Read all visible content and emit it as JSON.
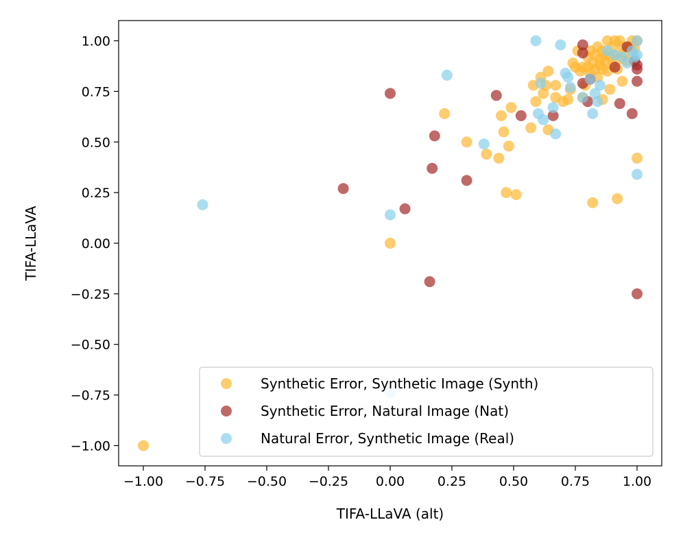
{
  "chart_data": {
    "type": "scatter",
    "title": "",
    "xlabel": "TIFA-LLaVA (alt)",
    "ylabel": "TIFA-LLaVA",
    "xlim": [
      -1.1,
      1.1
    ],
    "ylim": [
      -1.1,
      1.1
    ],
    "grid": false,
    "legend_position": "lower-right",
    "xticks": [
      -1.0,
      -0.75,
      -0.5,
      -0.25,
      0.0,
      0.25,
      0.5,
      0.75,
      1.0
    ],
    "xtick_labels": [
      "−1.00",
      "−0.75",
      "−0.50",
      "−0.25",
      "0.00",
      "0.25",
      "0.50",
      "0.75",
      "1.00"
    ],
    "yticks": [
      -1.0,
      -0.75,
      -0.5,
      -0.25,
      0.0,
      0.25,
      0.5,
      0.75,
      1.0
    ],
    "ytick_labels": [
      "−1.00",
      "−0.75",
      "−0.50",
      "−0.25",
      "0.00",
      "0.25",
      "0.50",
      "0.75",
      "1.00"
    ],
    "series": [
      {
        "name": "Synthetic Error, Synthetic Image (Synth)",
        "color": "#FFB732",
        "alpha": 0.7,
        "points": [
          [
            -1.0,
            -1.0
          ],
          [
            0.0,
            0.0
          ],
          [
            0.22,
            0.64
          ],
          [
            0.31,
            0.5
          ],
          [
            0.39,
            0.44
          ],
          [
            0.44,
            0.42
          ],
          [
            0.45,
            0.63
          ],
          [
            0.46,
            0.55
          ],
          [
            0.47,
            0.25
          ],
          [
            0.48,
            0.48
          ],
          [
            0.49,
            0.67
          ],
          [
            0.51,
            0.24
          ],
          [
            0.57,
            0.57
          ],
          [
            0.58,
            0.78
          ],
          [
            0.59,
            0.7
          ],
          [
            0.61,
            0.82
          ],
          [
            0.62,
            0.74
          ],
          [
            0.63,
            0.78
          ],
          [
            0.64,
            0.85
          ],
          [
            0.64,
            0.56
          ],
          [
            0.67,
            0.72
          ],
          [
            0.67,
            0.78
          ],
          [
            0.7,
            0.7
          ],
          [
            0.72,
            0.71
          ],
          [
            0.73,
            0.76
          ],
          [
            0.74,
            0.89
          ],
          [
            0.75,
            0.87
          ],
          [
            0.76,
            0.95
          ],
          [
            0.77,
            0.85
          ],
          [
            0.78,
            0.72
          ],
          [
            0.78,
            0.87
          ],
          [
            0.79,
            0.78
          ],
          [
            0.8,
            0.92
          ],
          [
            0.8,
            0.87
          ],
          [
            0.81,
            0.95
          ],
          [
            0.81,
            0.84
          ],
          [
            0.82,
            0.89
          ],
          [
            0.82,
            0.2
          ],
          [
            0.83,
            0.93
          ],
          [
            0.83,
            0.86
          ],
          [
            0.84,
            0.97
          ],
          [
            0.84,
            0.82
          ],
          [
            0.85,
            0.91
          ],
          [
            0.85,
            0.88
          ],
          [
            0.86,
            0.95
          ],
          [
            0.86,
            0.86
          ],
          [
            0.87,
            0.9
          ],
          [
            0.87,
            0.93
          ],
          [
            0.88,
            0.85
          ],
          [
            0.88,
            1.0
          ],
          [
            0.89,
            0.92
          ],
          [
            0.89,
            0.76
          ],
          [
            0.9,
            0.97
          ],
          [
            0.9,
            0.88
          ],
          [
            0.91,
            1.0
          ],
          [
            0.91,
            0.93
          ],
          [
            0.92,
            0.86
          ],
          [
            0.92,
            0.22
          ],
          [
            0.93,
            1.0
          ],
          [
            0.93,
            0.91
          ],
          [
            0.94,
            0.97
          ],
          [
            0.94,
            0.8
          ],
          [
            0.95,
            0.94
          ],
          [
            0.96,
            0.9
          ],
          [
            0.97,
            0.97
          ],
          [
            0.98,
            1.0
          ],
          [
            0.99,
            0.96
          ],
          [
            1.0,
            1.0
          ],
          [
            1.0,
            0.42
          ],
          [
            0.86,
            0.71
          ]
        ]
      },
      {
        "name": "Synthetic Error, Natural Image (Nat)",
        "color": "#A52A2A",
        "alpha": 0.7,
        "points": [
          [
            -0.19,
            0.27
          ],
          [
            0.0,
            0.74
          ],
          [
            0.06,
            0.17
          ],
          [
            0.16,
            -0.19
          ],
          [
            0.17,
            0.37
          ],
          [
            0.18,
            0.53
          ],
          [
            0.31,
            0.31
          ],
          [
            0.43,
            0.73
          ],
          [
            0.53,
            0.63
          ],
          [
            0.66,
            0.63
          ],
          [
            0.78,
            0.79
          ],
          [
            0.78,
            0.94
          ],
          [
            0.78,
            0.98
          ],
          [
            0.8,
            0.7
          ],
          [
            0.81,
            0.81
          ],
          [
            0.91,
            0.87
          ],
          [
            0.93,
            0.69
          ],
          [
            0.96,
            0.97
          ],
          [
            0.98,
            0.64
          ],
          [
            0.99,
            0.9
          ],
          [
            1.0,
            0.86
          ],
          [
            1.0,
            0.8
          ],
          [
            1.0,
            0.88
          ],
          [
            1.0,
            -0.25
          ]
        ]
      },
      {
        "name": "Natural Error, Synthetic Image (Real)",
        "color": "#87CEEB",
        "alpha": 0.7,
        "points": [
          [
            -0.76,
            0.19
          ],
          [
            0.0,
            0.14
          ],
          [
            0.0,
            -0.74
          ],
          [
            0.23,
            0.83
          ],
          [
            0.38,
            0.49
          ],
          [
            0.59,
            1.0
          ],
          [
            0.6,
            0.64
          ],
          [
            0.61,
            0.79
          ],
          [
            0.62,
            0.61
          ],
          [
            0.66,
            0.67
          ],
          [
            0.67,
            0.54
          ],
          [
            0.69,
            0.98
          ],
          [
            0.71,
            0.84
          ],
          [
            0.72,
            0.82
          ],
          [
            0.73,
            0.77
          ],
          [
            0.78,
            0.72
          ],
          [
            0.81,
            0.81
          ],
          [
            0.82,
            0.64
          ],
          [
            0.83,
            0.74
          ],
          [
            0.84,
            0.7
          ],
          [
            0.85,
            0.78
          ],
          [
            0.88,
            0.95
          ],
          [
            0.91,
            0.93
          ],
          [
            0.94,
            0.92
          ],
          [
            0.96,
            0.89
          ],
          [
            0.98,
            0.95
          ],
          [
            0.99,
            0.92
          ],
          [
            1.0,
            1.0
          ],
          [
            1.0,
            0.93
          ],
          [
            1.0,
            0.34
          ]
        ]
      }
    ]
  }
}
